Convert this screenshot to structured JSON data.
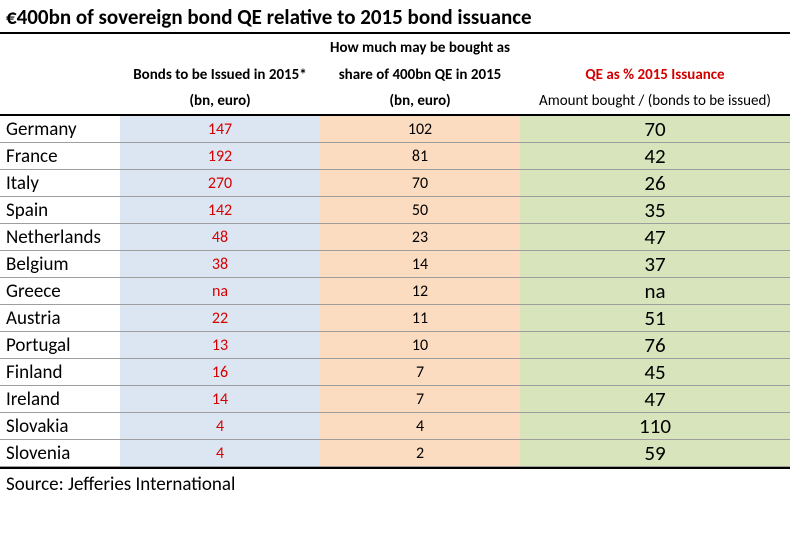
{
  "title": "€400bn of sovereign bond QE relative to 2015 bond issuance",
  "headers": {
    "col1_line1": "",
    "col1_line2": "Bonds to be Issued in 2015*",
    "col1_line3": "(bn, euro)",
    "col2_line1": "How much may be bought as",
    "col2_line2": "share of 400bn QE in 2015",
    "col2_line3": "(bn, euro)",
    "col3_line1": "",
    "col3_line2": "QE as % 2015 Issuance",
    "col3_line3": "Amount bought / (bonds to be issued)"
  },
  "rows": [
    {
      "country": "Germany",
      "issued": "147",
      "share": "102",
      "pct": "70"
    },
    {
      "country": "France",
      "issued": "192",
      "share": "81",
      "pct": "42"
    },
    {
      "country": "Italy",
      "issued": "270",
      "share": "70",
      "pct": "26"
    },
    {
      "country": "Spain",
      "issued": "142",
      "share": "50",
      "pct": "35"
    },
    {
      "country": "Netherlands",
      "issued": "48",
      "share": "23",
      "pct": "47"
    },
    {
      "country": "Belgium",
      "issued": "38",
      "share": "14",
      "pct": "37"
    },
    {
      "country": "Greece",
      "issued": "na",
      "share": "12",
      "pct": "na"
    },
    {
      "country": "Austria",
      "issued": "22",
      "share": "11",
      "pct": "51"
    },
    {
      "country": "Portugal",
      "issued": "13",
      "share": "10",
      "pct": "76"
    },
    {
      "country": "Finland",
      "issued": "16",
      "share": "7",
      "pct": "45"
    },
    {
      "country": "Ireland",
      "issued": "14",
      "share": "7",
      "pct": "47"
    },
    {
      "country": "Slovakia",
      "issued": "4",
      "share": "4",
      "pct": "110"
    },
    {
      "country": "Slovenia",
      "issued": "4",
      "share": "2",
      "pct": "59"
    }
  ],
  "source": "Source: Jefferies International",
  "colors": {
    "bg_blue": "#dbe6f2",
    "bg_orange": "#fcdcc0",
    "bg_green": "#d7e4bc",
    "red_text": "#d40000"
  }
}
